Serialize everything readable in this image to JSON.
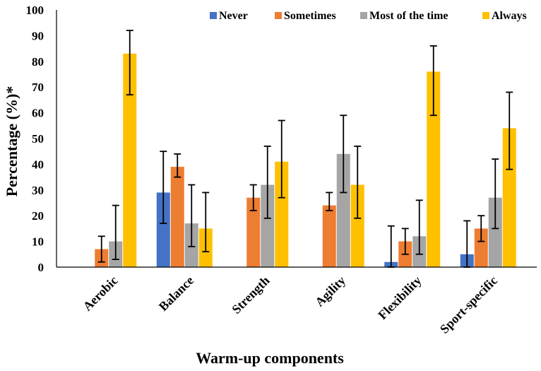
{
  "chart_data": {
    "type": "bar",
    "title": "",
    "xlabel": "Warm-up components",
    "ylabel": "Percentage (%)*",
    "ylim": [
      0,
      100
    ],
    "yticks": [
      0,
      10,
      20,
      30,
      40,
      50,
      60,
      70,
      80,
      90,
      100
    ],
    "legend_position": "top-right",
    "categories": [
      "Aerobic",
      "Balance",
      "Strength",
      "Agility",
      "Flexibility",
      "Sport-specific"
    ],
    "series": [
      {
        "name": "Never",
        "color": "#4472C4",
        "values": [
          0,
          29,
          0,
          0,
          2,
          5
        ],
        "error_low": [
          null,
          17,
          null,
          null,
          0,
          0
        ],
        "error_high": [
          null,
          45,
          null,
          null,
          16,
          18
        ]
      },
      {
        "name": "Sometimes",
        "color": "#ED7D31",
        "values": [
          7,
          39,
          27,
          24,
          10,
          15
        ],
        "error_low": [
          2,
          35,
          22,
          22,
          5,
          10
        ],
        "error_high": [
          12,
          44,
          32,
          29,
          15,
          20
        ]
      },
      {
        "name": "Most of the time",
        "color": "#A5A5A5",
        "values": [
          10,
          17,
          32,
          44,
          12,
          27
        ],
        "error_low": [
          3,
          8,
          19,
          29,
          5,
          15
        ],
        "error_high": [
          24,
          32,
          47,
          59,
          26,
          42
        ]
      },
      {
        "name": "Always",
        "color": "#FFC000",
        "values": [
          83,
          15,
          41,
          32,
          76,
          54
        ],
        "error_low": [
          67,
          6,
          27,
          19,
          59,
          38
        ],
        "error_high": [
          92,
          29,
          57,
          47,
          86,
          68
        ]
      }
    ]
  }
}
